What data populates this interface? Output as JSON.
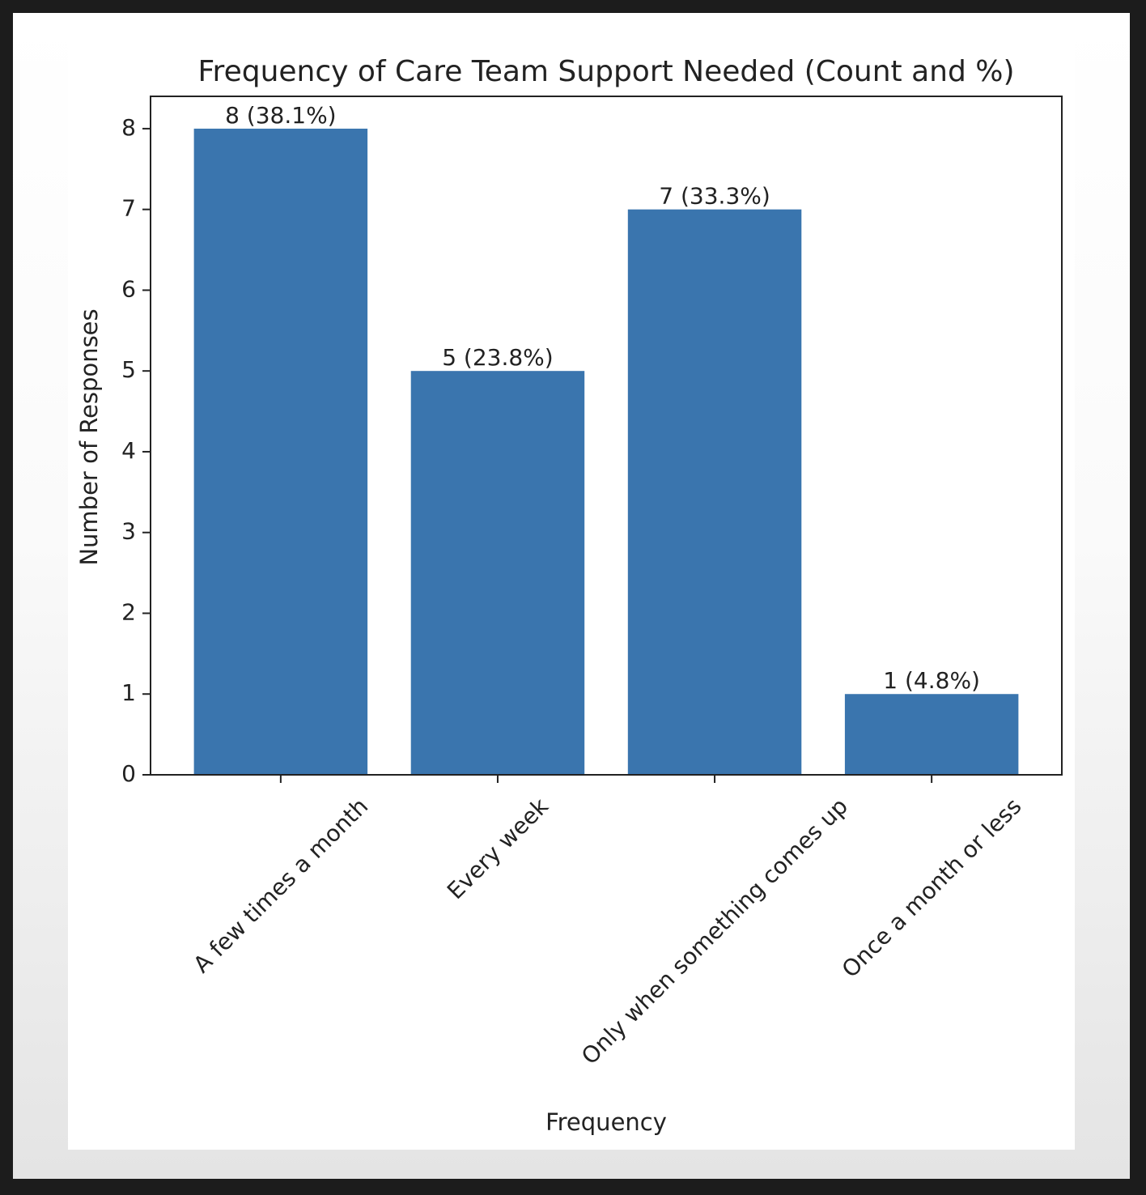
{
  "chart_data": {
    "type": "bar",
    "title": "Frequency of Care Team Support Needed (Count and %)",
    "x_label": "Frequency",
    "y_label": "Number of Responses",
    "categories": [
      "A few times a month",
      "Every week",
      "Only when something comes up",
      "Once a month or less"
    ],
    "values": [
      8,
      5,
      7,
      1
    ],
    "value_labels": [
      "8 (38.1%)",
      "5 (23.8%)",
      "7 (33.3%)",
      "1 (4.8%)"
    ],
    "color": "#3a75ae",
    "ylim": [
      0,
      8.4
    ],
    "yticks": [
      0,
      1,
      2,
      3,
      4,
      5,
      6,
      7,
      8
    ],
    "grid": false
  }
}
